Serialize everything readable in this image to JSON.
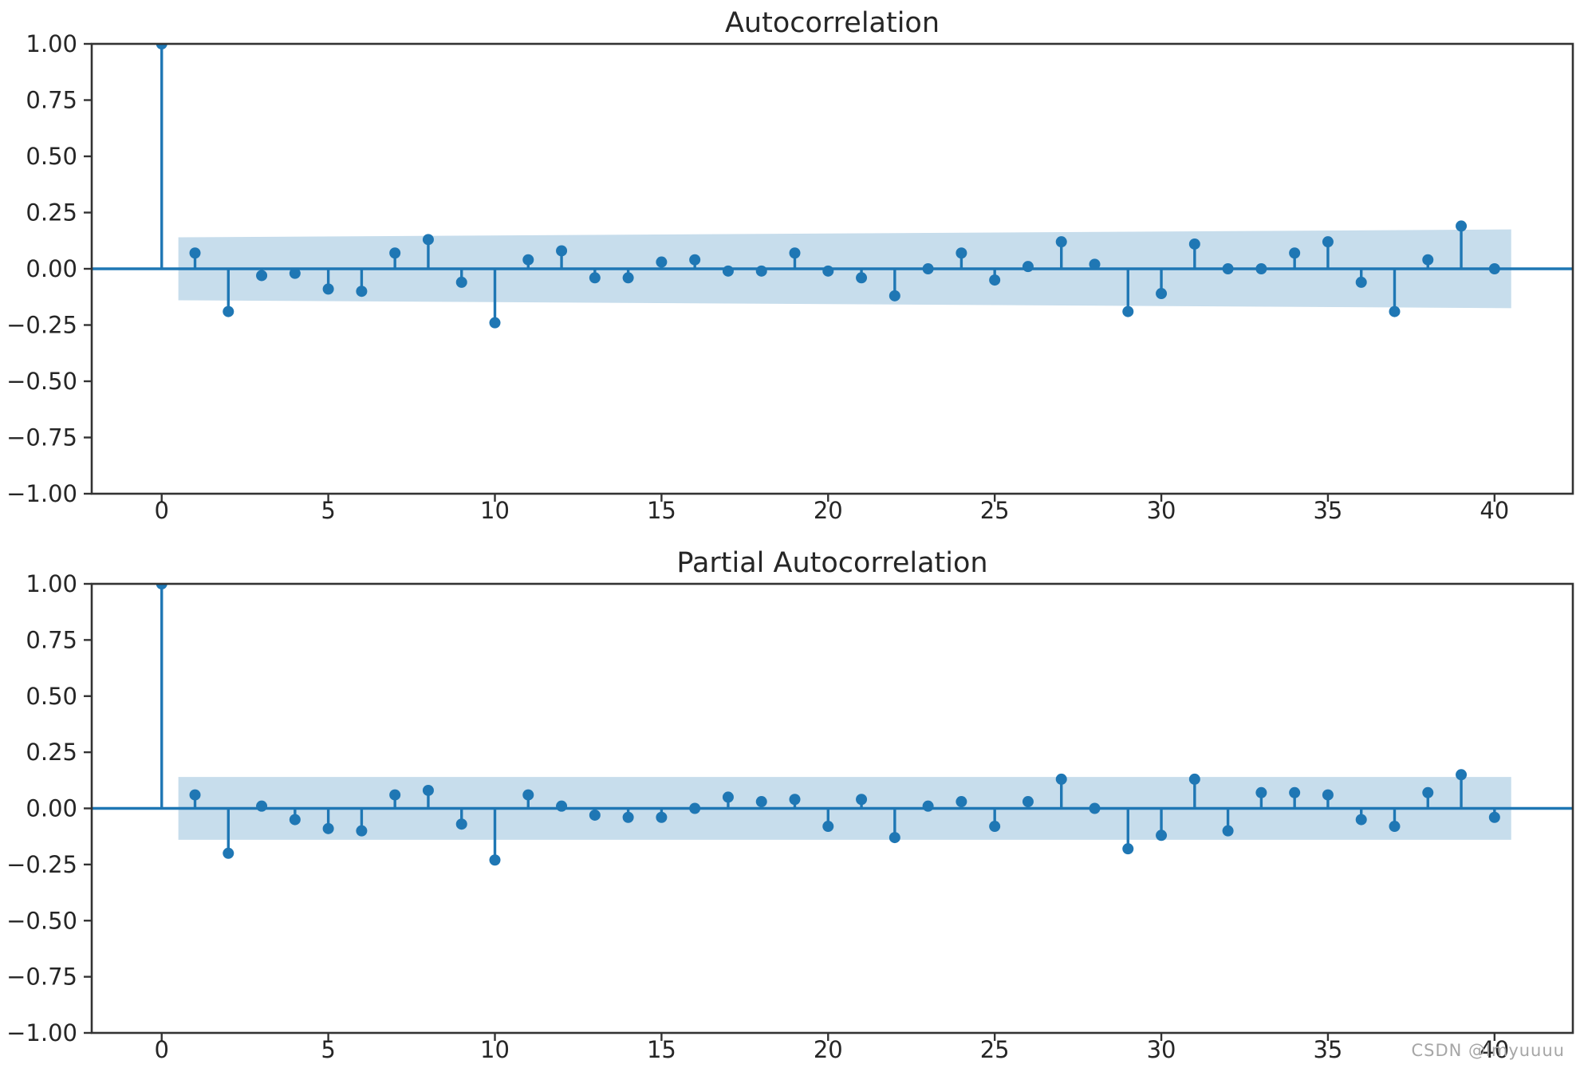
{
  "page": {
    "background": "#ffffff",
    "watermark": "CSDN @lmyuuuu"
  },
  "colors": {
    "stem": "#1f77b4",
    "marker": "#1f77b4",
    "ci_band": "#c7ddec",
    "axis": "#333333",
    "text": "#262626",
    "watermark": "#a6a6a6"
  },
  "chart_data": [
    {
      "type": "stem",
      "title": "Autocorrelation",
      "xlabel": "",
      "ylabel": "",
      "xlim": [
        -2.1,
        42.35
      ],
      "ylim": [
        -1.0,
        1.0
      ],
      "grid": false,
      "legend": null,
      "xtick_values": [
        0,
        5,
        10,
        15,
        20,
        25,
        30,
        35,
        40
      ],
      "xtick_labels": [
        "0",
        "5",
        "10",
        "15",
        "20",
        "25",
        "30",
        "35",
        "40"
      ],
      "ytick_values": [
        1.0,
        0.75,
        0.5,
        0.25,
        0.0,
        -0.25,
        -0.5,
        -0.75,
        -1.0
      ],
      "ytick_labels": [
        "1.00",
        "0.75",
        "0.50",
        "0.25",
        "0.00",
        "−0.25",
        "−0.50",
        "−0.75",
        "−1.00"
      ],
      "lags": [
        0,
        1,
        2,
        3,
        4,
        5,
        6,
        7,
        8,
        9,
        10,
        11,
        12,
        13,
        14,
        15,
        16,
        17,
        18,
        19,
        20,
        21,
        22,
        23,
        24,
        25,
        26,
        27,
        28,
        29,
        30,
        31,
        32,
        33,
        34,
        35,
        36,
        37,
        38,
        39,
        40
      ],
      "values": [
        1.0,
        0.07,
        -0.19,
        -0.03,
        -0.02,
        -0.09,
        -0.1,
        0.07,
        0.13,
        -0.06,
        -0.24,
        0.04,
        0.08,
        -0.04,
        -0.04,
        0.03,
        0.04,
        -0.01,
        -0.01,
        0.07,
        -0.01,
        -0.04,
        -0.12,
        0.0,
        0.07,
        -0.05,
        0.01,
        0.12,
        0.02,
        -0.19,
        -0.11,
        0.11,
        0.0,
        0.0,
        0.07,
        0.12,
        -0.06,
        -0.19,
        0.04,
        0.19,
        0.0
      ],
      "ci_band": {
        "from_lag": 0.5,
        "to_lag": 40.5,
        "halfwidth_start": 0.14,
        "halfwidth_end": 0.175
      }
    },
    {
      "type": "stem",
      "title": "Partial Autocorrelation",
      "xlabel": "",
      "ylabel": "",
      "xlim": [
        -2.1,
        42.35
      ],
      "ylim": [
        -1.0,
        1.0
      ],
      "grid": false,
      "legend": null,
      "xtick_values": [
        0,
        5,
        10,
        15,
        20,
        25,
        30,
        35,
        40
      ],
      "xtick_labels": [
        "0",
        "5",
        "10",
        "15",
        "20",
        "25",
        "30",
        "35",
        "40"
      ],
      "ytick_values": [
        1.0,
        0.75,
        0.5,
        0.25,
        0.0,
        -0.25,
        -0.5,
        -0.75,
        -1.0
      ],
      "ytick_labels": [
        "1.00",
        "0.75",
        "0.50",
        "0.25",
        "0.00",
        "−0.25",
        "−0.50",
        "−0.75",
        "−1.00"
      ],
      "lags": [
        0,
        1,
        2,
        3,
        4,
        5,
        6,
        7,
        8,
        9,
        10,
        11,
        12,
        13,
        14,
        15,
        16,
        17,
        18,
        19,
        20,
        21,
        22,
        23,
        24,
        25,
        26,
        27,
        28,
        29,
        30,
        31,
        32,
        33,
        34,
        35,
        36,
        37,
        38,
        39,
        40
      ],
      "values": [
        1.0,
        0.06,
        -0.2,
        0.01,
        -0.05,
        -0.09,
        -0.1,
        0.06,
        0.08,
        -0.07,
        -0.23,
        0.06,
        0.01,
        -0.03,
        -0.04,
        -0.04,
        0.0,
        0.05,
        0.03,
        0.04,
        -0.08,
        0.04,
        -0.13,
        0.01,
        0.03,
        -0.08,
        0.03,
        0.13,
        0.0,
        -0.18,
        -0.12,
        0.13,
        -0.1,
        0.07,
        0.07,
        0.06,
        -0.05,
        -0.08,
        0.07,
        0.15,
        -0.04
      ],
      "ci_band": {
        "from_lag": 0.5,
        "to_lag": 40.5,
        "halfwidth_start": 0.14,
        "halfwidth_end": 0.14
      }
    }
  ]
}
